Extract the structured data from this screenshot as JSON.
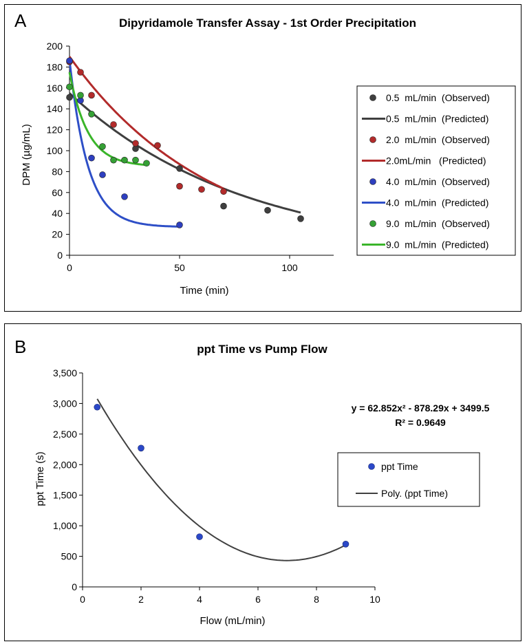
{
  "panels": {
    "a_letter": "A",
    "b_letter": "B"
  },
  "chart_data": [
    {
      "type": "scatter",
      "title": "Dipyridamole Transfer Assay - 1st Order Precipitation",
      "xlabel": "Time  (min)",
      "ylabel": "DPM (µg/mL)",
      "xlim": [
        0,
        120
      ],
      "ylim": [
        0,
        200
      ],
      "xticks": [
        0,
        50,
        100
      ],
      "yticks": [
        0,
        20,
        40,
        60,
        80,
        100,
        120,
        140,
        160,
        180,
        200
      ],
      "legend_position": "right",
      "series": [
        {
          "name": "0.5  mL/min  (Observed)",
          "kind": "points",
          "color": "#3f3f3f",
          "x": [
            0,
            30,
            50,
            70,
            90,
            105
          ],
          "y": [
            151,
            102,
            83,
            47,
            43,
            35
          ]
        },
        {
          "name": "0.5  mL/min  (Predicted)",
          "kind": "line",
          "color": "#3f3f3f",
          "x0": 0,
          "x1": 105,
          "a": 155,
          "k": 0.0127
        },
        {
          "name": "2.0  mL/min  (Observed)",
          "kind": "points",
          "color": "#b22b2b",
          "x": [
            0,
            5,
            10,
            20,
            30,
            40,
            50,
            60,
            70
          ],
          "y": [
            185,
            175,
            153,
            125,
            107,
            105,
            66,
            63,
            61
          ]
        },
        {
          "name": "2.0mL/min   (Predicted)",
          "kind": "line",
          "color": "#b22b2b",
          "x0": 0,
          "x1": 70,
          "a": 190,
          "k": 0.0156
        },
        {
          "name": "4.0  mL/min  (Observed)",
          "kind": "points",
          "color": "#2e3fbf",
          "x": [
            0,
            5,
            10,
            15,
            25,
            50
          ],
          "y": [
            186,
            148,
            93,
            77,
            56,
            29
          ]
        },
        {
          "name": "4.0  mL/min  (Predicted)",
          "kind": "line",
          "color": "#2e4fc7",
          "x0": 0,
          "x1": 50,
          "c": 27,
          "a": 160,
          "k": 0.12
        },
        {
          "name": "9.0  mL/min  (Observed)",
          "kind": "points",
          "color": "#35a035",
          "x": [
            0,
            5,
            10,
            15,
            20,
            25,
            30,
            35
          ],
          "y": [
            161,
            153,
            135,
            104,
            91,
            91,
            91,
            88
          ]
        },
        {
          "name": "9.0  mL/min  (Predicted)",
          "kind": "line",
          "color": "#3ab52a",
          "x0": 0,
          "x1": 35,
          "c": 85,
          "a": 90,
          "k": 0.12
        }
      ]
    },
    {
      "type": "scatter",
      "title": "ppt Time vs Pump Flow",
      "xlabel": "Flow (mL/min)",
      "ylabel": "ppt Time (s)",
      "xlim": [
        0,
        10
      ],
      "ylim": [
        0,
        3500
      ],
      "xticks": [
        0,
        2,
        4,
        6,
        8,
        10
      ],
      "yticks": [
        0,
        500,
        1000,
        1500,
        2000,
        2500,
        3000,
        3500
      ],
      "ytick_labels": [
        "0",
        "500",
        "1,000",
        "1,500",
        "2,000",
        "2,500",
        "3,000",
        "3,500"
      ],
      "legend_position": "right",
      "points": {
        "name": "ppt Time",
        "color": "#2b48c8",
        "x": [
          0.5,
          2,
          4,
          9
        ],
        "y": [
          2940,
          2270,
          820,
          700
        ]
      },
      "trendline": {
        "name": "Poly. (ppt Time)",
        "color": "#404040",
        "coefficients": [
          62.852,
          -878.29,
          3499.5
        ],
        "x0": 0.5,
        "x1": 9
      },
      "equation": "y = 62.852x² - 878.29x + 3499.5",
      "r_squared": "R² = 0.9649"
    }
  ]
}
